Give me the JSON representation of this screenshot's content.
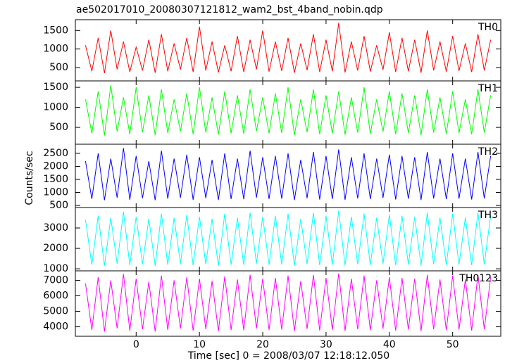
{
  "chart_data": {
    "type": "line",
    "title": "ae502017010_20080307121812_wam2_bst_4band_nobin.qdp",
    "xlabel": "Time [sec] 0 = 2008/03/07 12:18:12.050",
    "ylabel": "Counts/sec",
    "xlim": [
      -9.6,
      57.6
    ],
    "xticks": [
      0,
      10,
      20,
      30,
      40,
      50
    ],
    "x": [
      -8,
      -7,
      -6,
      -5,
      -4,
      -3,
      -2,
      -1,
      0,
      1,
      2,
      3,
      4,
      5,
      6,
      7,
      8,
      9,
      10,
      11,
      12,
      13,
      14,
      15,
      16,
      17,
      18,
      19,
      20,
      21,
      22,
      23,
      24,
      25,
      26,
      27,
      28,
      29,
      30,
      31,
      32,
      33,
      34,
      35,
      36,
      37,
      38,
      39,
      40,
      41,
      42,
      43,
      44,
      45,
      46,
      47,
      48,
      49,
      50,
      51,
      52,
      53,
      54,
      55,
      56
    ],
    "panels": [
      {
        "name": "TH0",
        "color": "#ff0000",
        "ylim": [
          140,
          1790
        ],
        "yticks": [
          500,
          1000,
          1500
        ],
        "values": [
          1100,
          400,
          1300,
          350,
          1500,
          450,
          1200,
          380,
          1050,
          420,
          1250,
          360,
          1400,
          400,
          1150,
          450,
          1300,
          380,
          1600,
          420,
          1200,
          370,
          1100,
          400,
          1350,
          380,
          1250,
          450,
          1500,
          390,
          1200,
          410,
          1300,
          360,
          1150,
          430,
          1400,
          380,
          1250,
          400,
          1700,
          370,
          1200,
          420,
          1350,
          390,
          1100,
          440,
          1450,
          380,
          1300,
          400,
          1250,
          360,
          1500,
          420,
          1200,
          390,
          1350,
          410,
          1150,
          380,
          1400,
          420,
          1250
        ]
      },
      {
        "name": "TH1",
        "color": "#00ff00",
        "ylim": [
          80,
          1660
        ],
        "yticks": [
          500,
          1000,
          1500
        ],
        "values": [
          1200,
          350,
          1400,
          300,
          1550,
          400,
          1250,
          330,
          1500,
          380,
          1300,
          310,
          1450,
          360,
          1200,
          400,
          1350,
          330,
          1500,
          370,
          1250,
          320,
          1400,
          350,
          1300,
          340,
          1450,
          400,
          1250,
          350,
          1350,
          360,
          1500,
          310,
          1200,
          380,
          1450,
          330,
          1300,
          350,
          1400,
          320,
          1250,
          370,
          1500,
          340,
          1200,
          390,
          1400,
          330,
          1350,
          360,
          1300,
          310,
          1450,
          370,
          1250,
          340,
          1400,
          360,
          1200,
          330,
          1450,
          370,
          1300
        ]
      },
      {
        "name": "TH2",
        "color": "#0000ff",
        "ylim": [
          420,
          2850
        ],
        "yticks": [
          500,
          1000,
          1500,
          2000,
          2500
        ],
        "values": [
          2200,
          750,
          2500,
          700,
          2300,
          800,
          2700,
          720,
          2400,
          780,
          2200,
          700,
          2600,
          760,
          2300,
          800,
          2450,
          720,
          2350,
          780,
          2250,
          710,
          2500,
          750,
          2300,
          740,
          2600,
          800,
          2350,
          750,
          2400,
          760,
          2500,
          710,
          2250,
          780,
          2550,
          730,
          2400,
          750,
          2650,
          720,
          2350,
          770,
          2500,
          740,
          2300,
          790,
          2450,
          730,
          2400,
          760,
          2350,
          710,
          2550,
          770,
          2300,
          740,
          2500,
          760,
          2300,
          730,
          2550,
          770,
          2400
        ]
      },
      {
        "name": "TH3",
        "color": "#00ffff",
        "ylim": [
          900,
          4000
        ],
        "yticks": [
          1000,
          2000,
          3000
        ],
        "values": [
          3400,
          1200,
          3600,
          1150,
          3500,
          1250,
          3800,
          1180,
          3550,
          1220,
          3450,
          1150,
          3700,
          1200,
          3500,
          1250,
          3650,
          1180,
          3550,
          1220,
          3450,
          1160,
          3700,
          1200,
          3500,
          1190,
          3750,
          1250,
          3550,
          1200,
          3600,
          1210,
          3700,
          1160,
          3450,
          1230,
          3750,
          1180,
          3600,
          1200,
          3850,
          1170,
          3550,
          1220,
          3700,
          1190,
          3500,
          1240,
          3650,
          1180,
          3600,
          1210,
          3550,
          1160,
          3750,
          1220,
          3500,
          1190,
          3700,
          1210,
          3500,
          1180,
          3750,
          1220,
          3600
        ]
      },
      {
        "name": "TH0123",
        "color": "#ff00ff",
        "ylim": [
          3390,
          7610
        ],
        "yticks": [
          4000,
          5000,
          6000,
          7000
        ],
        "values": [
          6800,
          3800,
          7200,
          3700,
          7000,
          3900,
          7400,
          3750,
          7100,
          3850,
          6900,
          3700,
          7300,
          3800,
          7000,
          3900,
          7200,
          3750,
          7100,
          3850,
          6950,
          3720,
          7250,
          3800,
          7050,
          3780,
          7350,
          3900,
          7100,
          3800,
          7150,
          3820,
          7300,
          3720,
          6950,
          3860,
          7350,
          3760,
          7150,
          3800,
          7450,
          3740,
          7100,
          3840,
          7300,
          3780,
          7000,
          3880,
          7200,
          3760,
          7150,
          3820,
          7100,
          3720,
          7350,
          3840,
          7050,
          3780,
          7300,
          3820,
          7050,
          3760,
          7350,
          3840,
          7200
        ]
      }
    ]
  }
}
